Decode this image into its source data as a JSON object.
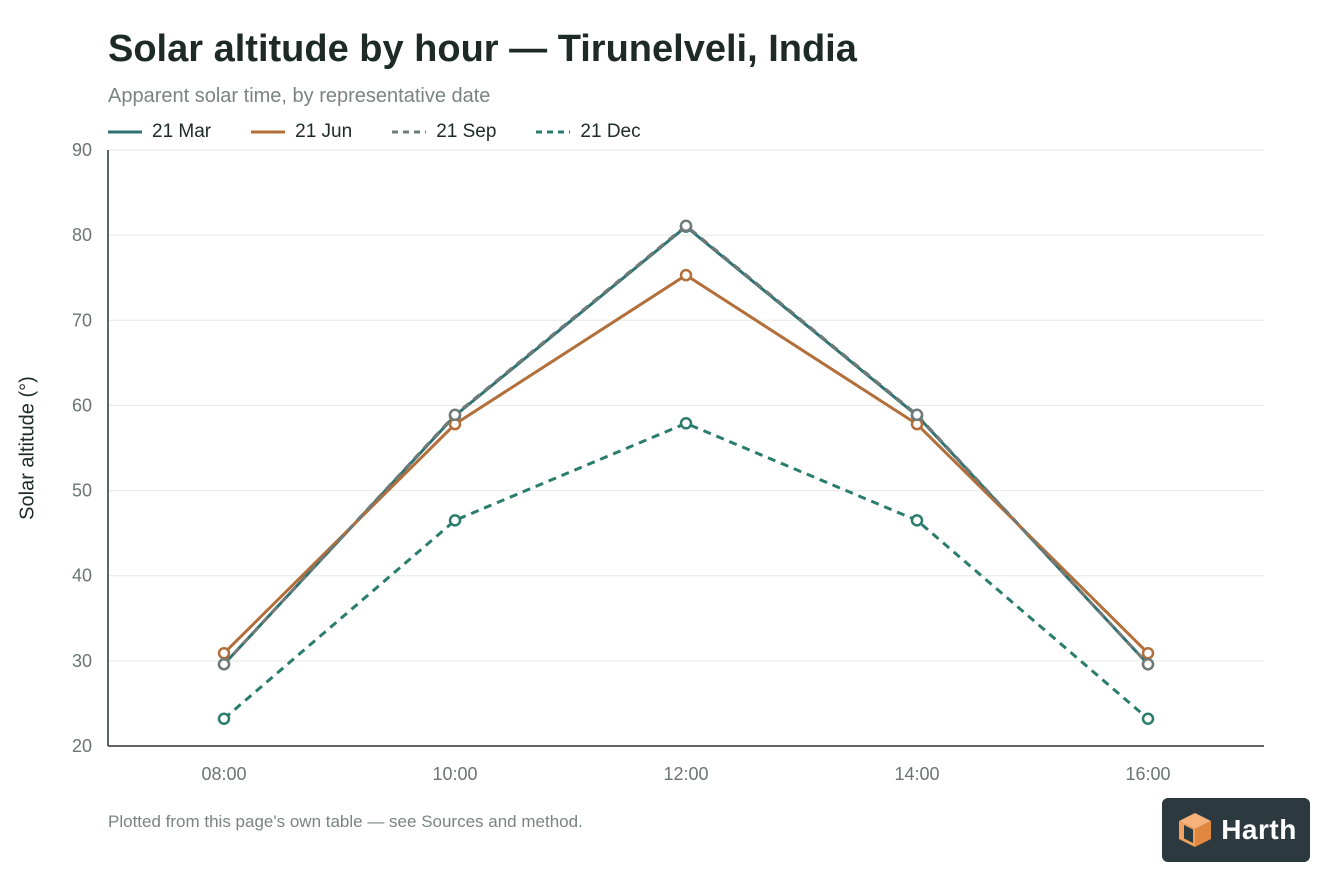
{
  "chart_data": {
    "type": "line",
    "title": "Solar altitude by hour — Tirunelveli, India",
    "subtitle": "Apparent solar time, by representative date",
    "xlabel": "",
    "ylabel": "Solar altitude (°)",
    "categories": [
      "08:00",
      "10:00",
      "12:00",
      "14:00",
      "16:00"
    ],
    "ylim": [
      20,
      90
    ],
    "yticks": [
      20,
      30,
      40,
      50,
      60,
      70,
      80,
      90
    ],
    "grid": true,
    "legend_position": "top-left",
    "series": [
      {
        "name": "21 Mar",
        "values": [
          29.6,
          58.8,
          81.0,
          58.8,
          29.6
        ],
        "color": "#2e7372",
        "dash": "solid"
      },
      {
        "name": "21 Jun",
        "values": [
          30.9,
          57.8,
          75.3,
          57.8,
          30.9
        ],
        "color": "#b36f3a",
        "dash": "solid"
      },
      {
        "name": "21 Sep",
        "values": [
          29.6,
          58.9,
          81.1,
          58.9,
          29.6
        ],
        "color": "#6f7a79",
        "dash": "dashed"
      },
      {
        "name": "21 Dec",
        "values": [
          23.2,
          46.5,
          57.9,
          46.5,
          23.2
        ],
        "color": "#2a7d6d",
        "dash": "dashed"
      }
    ]
  },
  "footnote": "Plotted from this page's own table — see Sources and method.",
  "logo": {
    "text": "Harth",
    "badge_color": "#2c3a40",
    "mark_color": "#f2a25c",
    "icon": "cube-icon"
  }
}
